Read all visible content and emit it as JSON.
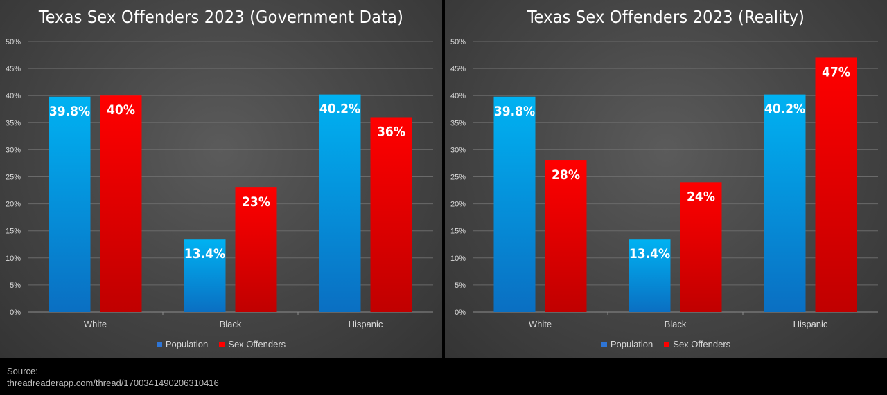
{
  "chart_data": [
    {
      "type": "bar",
      "title": "Texas Sex Offenders 2023 (Government Data)",
      "categories": [
        "White",
        "Black",
        "Hispanic"
      ],
      "series": [
        {
          "name": "Population",
          "values": [
            39.8,
            13.4,
            40.2
          ],
          "labels": [
            "39.8%",
            "13.4%",
            "40.2%"
          ],
          "color": "#00b0f0"
        },
        {
          "name": "Sex Offenders",
          "values": [
            40,
            23,
            36
          ],
          "labels": [
            "40%",
            "23%",
            "36%"
          ],
          "color": "#ff0000"
        }
      ],
      "ylim": [
        0,
        50
      ],
      "yticks": [
        "0%",
        "5%",
        "10%",
        "15%",
        "20%",
        "25%",
        "30%",
        "35%",
        "40%",
        "45%",
        "50%"
      ],
      "xlabel": "",
      "ylabel": "",
      "grid": true,
      "legend": "bottom"
    },
    {
      "type": "bar",
      "title": "Texas Sex Offenders 2023 (Reality)",
      "categories": [
        "White",
        "Black",
        "Hispanic"
      ],
      "series": [
        {
          "name": "Population",
          "values": [
            39.8,
            13.4,
            40.2
          ],
          "labels": [
            "39.8%",
            "13.4%",
            "40.2%"
          ],
          "color": "#00b0f0"
        },
        {
          "name": "Sex Offenders",
          "values": [
            28,
            24,
            47
          ],
          "labels": [
            "28%",
            "24%",
            "47%"
          ],
          "color": "#ff0000"
        }
      ],
      "ylim": [
        0,
        50
      ],
      "yticks": [
        "0%",
        "5%",
        "10%",
        "15%",
        "20%",
        "25%",
        "30%",
        "35%",
        "40%",
        "45%",
        "50%"
      ],
      "xlabel": "",
      "ylabel": "",
      "grid": true,
      "legend": "bottom"
    }
  ],
  "legend": {
    "population_label": "Population",
    "offenders_label": "Sex Offenders",
    "population_color": "#2e75d6",
    "offenders_color": "#ff0000"
  },
  "source": {
    "label": "Source:",
    "url": "threadreaderapp.com/thread/1700341490206310416"
  }
}
